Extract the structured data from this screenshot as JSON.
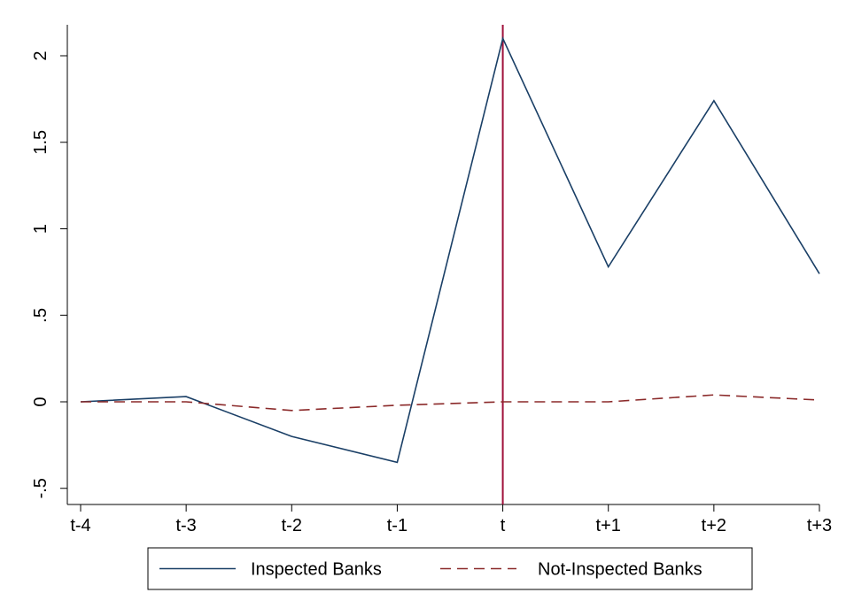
{
  "chart_data": {
    "type": "line",
    "title": "",
    "xlabel": "",
    "ylabel": "",
    "categories": [
      "t-4",
      "t-3",
      "t-2",
      "t-1",
      "t",
      "t+1",
      "t+2",
      "t+3"
    ],
    "y_ticks": [
      {
        "value": -0.5,
        "label": "-.5"
      },
      {
        "value": 0,
        "label": "0"
      },
      {
        "value": 0.5,
        "label": ".5"
      },
      {
        "value": 1,
        "label": "1"
      },
      {
        "value": 1.5,
        "label": "1.5"
      },
      {
        "value": 2,
        "label": "2"
      }
    ],
    "ylim": [
      -0.58,
      2.18
    ],
    "grid": false,
    "legend_position": "bottom",
    "reference_line": {
      "x": "t",
      "color": "#a0103a"
    },
    "series": [
      {
        "name": "Inspected Banks",
        "style": "solid",
        "color": "#1a3f66",
        "values": [
          0.0,
          0.03,
          -0.2,
          -0.35,
          2.1,
          0.78,
          1.74,
          0.74
        ]
      },
      {
        "name": "Not-Inspected Banks",
        "style": "dashed",
        "color": "#8b2a2a",
        "values": [
          0.0,
          0.0,
          -0.05,
          -0.02,
          0.0,
          0.0,
          0.04,
          0.01
        ]
      }
    ]
  }
}
